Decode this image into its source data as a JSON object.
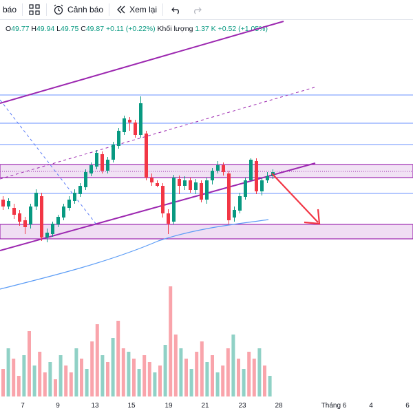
{
  "toolbar": {
    "alert_partial_label": "báo",
    "alert_label": "Cảnh báo",
    "replay_label": "Xem lại"
  },
  "legend": {
    "o_label": "O",
    "o": "49.77",
    "h_label": "H",
    "h": "49.94",
    "l_label": "L",
    "l": "49.75",
    "c_label": "C",
    "c": "49.87",
    "change": "+0.11 (+0.22%)",
    "volume_label": "Khối lượng",
    "volume": "1.37 K",
    "volume_change": "+0.52 (+1.05%)"
  },
  "colors": {
    "up": "#089981",
    "down": "#f23645",
    "trend": "#9c27b0",
    "hline": "#2962ff",
    "ma": "#5b9cf6",
    "arrow": "#f23645"
  },
  "x_axis": {
    "labels": [
      "7",
      "9",
      "13",
      "15",
      "19",
      "21",
      "23",
      "28",
      "Tháng 6",
      "4",
      "6"
    ]
  }
}
